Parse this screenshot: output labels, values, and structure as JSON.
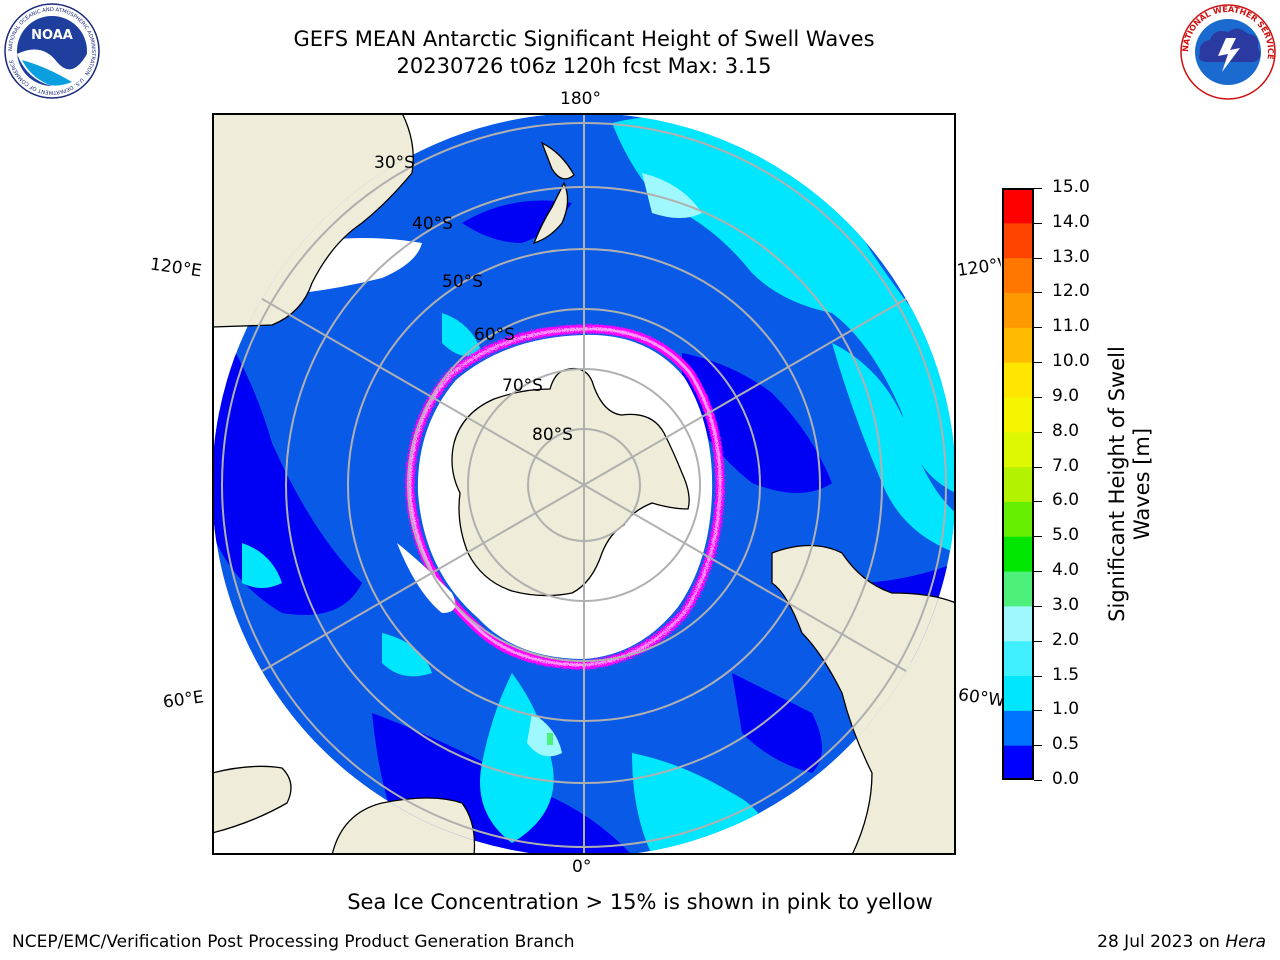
{
  "header": {
    "title_line1": "GEFS MEAN Antarctic Significant Height of Swell Waves",
    "title_line2": "20230726 t06z 120h fcst   Max: 3.15",
    "noaa_logo_text": "NOAA",
    "noaa_logo_ring_text": "NATIONAL OCEANIC AND ATMOSPHERIC ADMINISTRATION · U.S. DEPARTMENT OF COMMERCE",
    "nws_logo_ring_text": "NATIONAL WEATHER SERVICE"
  },
  "map": {
    "projection": "south-polar-stereographic",
    "lon_labels": {
      "top": "180°",
      "bottom": "0°",
      "upper_left": "120°E",
      "upper_right": "120°W",
      "lower_left": "60°E",
      "lower_right": "60°W"
    },
    "lat_labels": [
      "30°S",
      "40°S",
      "50°S",
      "60°S",
      "70°S",
      "80°S"
    ],
    "ocean_color": "#0a5ae8",
    "land_color": "#efecd9",
    "ice_color": "#ffffff",
    "ice_edge_colors": [
      "#ff00ff",
      "#ff80ff",
      "#ffd000"
    ]
  },
  "colorbar": {
    "title": "Significant Height of Swell Waves [m]",
    "title_line1": "Significant Height of Swell",
    "title_line2": "Waves [m]",
    "ticks": [
      "15.0",
      "14.0",
      "13.0",
      "12.0",
      "11.0",
      "10.0",
      "9.0",
      "8.0",
      "7.0",
      "6.0",
      "5.0",
      "4.0",
      "3.0",
      "2.0",
      "1.5",
      "1.0",
      "0.5",
      "0.0"
    ],
    "bands": [
      {
        "from": 0.0,
        "to": 0.5,
        "color": "#0000ff"
      },
      {
        "from": 0.5,
        "to": 1.0,
        "color": "#0073ff"
      },
      {
        "from": 1.0,
        "to": 1.5,
        "color": "#00e6ff"
      },
      {
        "from": 1.5,
        "to": 2.0,
        "color": "#40f0ff"
      },
      {
        "from": 2.0,
        "to": 3.0,
        "color": "#a0f8ff"
      },
      {
        "from": 3.0,
        "to": 4.0,
        "color": "#4cf07a"
      },
      {
        "from": 4.0,
        "to": 5.0,
        "color": "#00e600"
      },
      {
        "from": 5.0,
        "to": 6.0,
        "color": "#66ee00"
      },
      {
        "from": 6.0,
        "to": 7.0,
        "color": "#b3f200"
      },
      {
        "from": 7.0,
        "to": 8.0,
        "color": "#ddf800"
      },
      {
        "from": 8.0,
        "to": 9.0,
        "color": "#f5f500"
      },
      {
        "from": 9.0,
        "to": 10.0,
        "color": "#ffe600"
      },
      {
        "from": 10.0,
        "to": 11.0,
        "color": "#ffbb00"
      },
      {
        "from": 11.0,
        "to": 12.0,
        "color": "#ff9900"
      },
      {
        "from": 12.0,
        "to": 13.0,
        "color": "#ff7700"
      },
      {
        "from": 13.0,
        "to": 14.0,
        "color": "#ff4400"
      },
      {
        "from": 14.0,
        "to": 15.0,
        "color": "#ff0000"
      }
    ]
  },
  "footer": {
    "note": "Sea Ice Concentration > 15% is shown in pink to yellow",
    "left": "NCEP/EMC/Verification Post Processing Product Generation Branch",
    "right_date": "28 Jul 2023 on ",
    "right_host": "Hera"
  }
}
